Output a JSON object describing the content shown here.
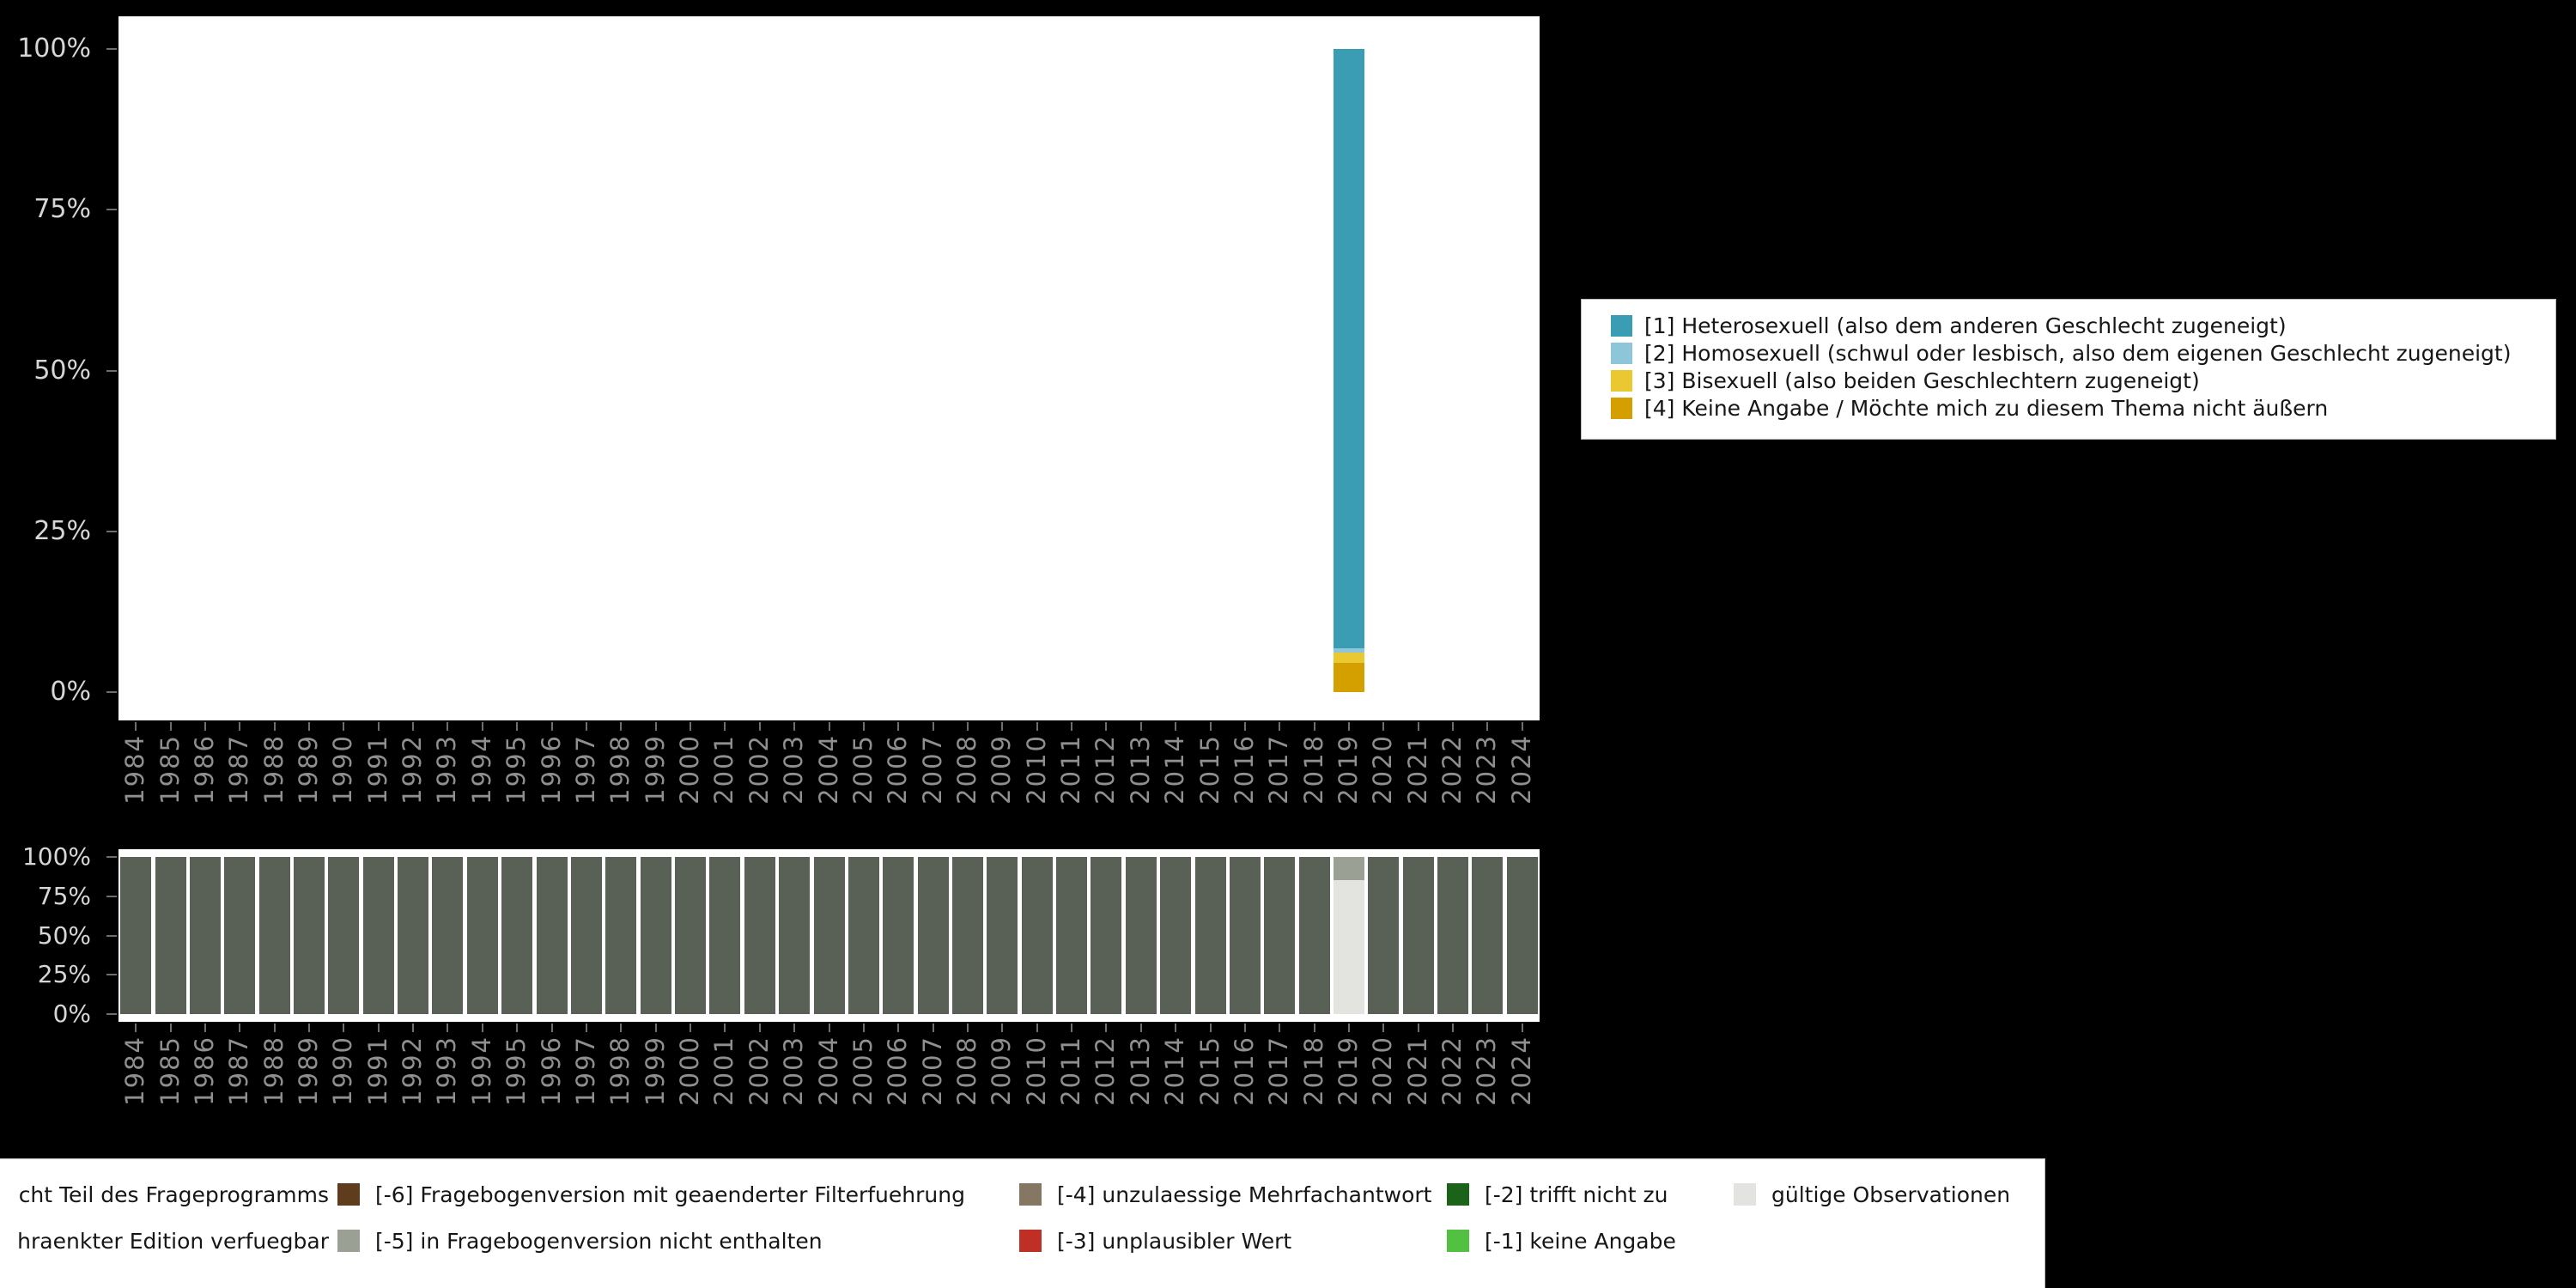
{
  "window": {
    "background": "#000000",
    "panel": "#ffffff"
  },
  "top_legend": {
    "items": [
      {
        "label": "[1] Heterosexuell (also dem anderen Geschlecht zugeneigt)",
        "color": "#3a9db3"
      },
      {
        "label": "[2] Homosexuell (schwul oder lesbisch, also dem eigenen Geschlecht zugeneigt)",
        "color": "#8cc6d8"
      },
      {
        "label": "[3] Bisexuell (also beiden Geschlechtern zugeneigt)",
        "color": "#e9c832"
      },
      {
        "label": "[4] Keine Angabe / Möchte mich zu diesem Thema nicht äußern",
        "color": "#d4a000"
      }
    ]
  },
  "bottom_legend": {
    "rows": [
      {
        "items": [
          {
            "label": "cht Teil des Frageprogramms",
            "color": null
          },
          {
            "label": "[-6] Fragebogenversion mit geaenderter Filterfuehrung",
            "color": "#5e3c1c"
          },
          {
            "label": "[-4] unzulaessige Mehrfachantwort",
            "color": "#857761"
          },
          {
            "label": "[-2] trifft nicht zu",
            "color": "#1a6318"
          },
          {
            "label": "gültige Observationen",
            "color": "#e3e3e0"
          }
        ]
      },
      {
        "items": [
          {
            "label": "hraenkter Edition verfuegbar",
            "color": null
          },
          {
            "label": "[-5] in Fragebogenversion nicht enthalten",
            "color": "#9aa094"
          },
          {
            "label": "[-3] unplausibler Wert",
            "color": "#bf2f25"
          },
          {
            "label": "[-1] keine Angabe",
            "color": "#52c141"
          }
        ]
      }
    ]
  },
  "chart_data": [
    {
      "type": "bar",
      "stacked": true,
      "title": "",
      "unit": "%",
      "ylim": [
        0,
        100
      ],
      "ytick_labels": [
        "100%",
        "75%",
        "50%",
        "25%",
        "0%"
      ],
      "categories": [
        "1984",
        "1985",
        "1986",
        "1987",
        "1988",
        "1989",
        "1990",
        "1991",
        "1992",
        "1993",
        "1994",
        "1995",
        "1996",
        "1997",
        "1998",
        "1999",
        "2000",
        "2001",
        "2002",
        "2003",
        "2004",
        "2005",
        "2006",
        "2007",
        "2008",
        "2009",
        "2010",
        "2011",
        "2012",
        "2013",
        "2014",
        "2015",
        "2016",
        "2017",
        "2018",
        "2019",
        "2020",
        "2021",
        "2022",
        "2023",
        "2024"
      ],
      "series": [
        {
          "name": "[1] Heterosexuell (also dem anderen Geschlecht zugeneigt)",
          "color": "#3a9db3",
          "default": 0,
          "values_by_year": {
            "2019": 93.2
          }
        },
        {
          "name": "[2] Homosexuell (schwul oder lesbisch, also dem eigenen Geschlecht zugeneigt)",
          "color": "#8cc6d8",
          "default": 0,
          "values_by_year": {
            "2019": 0.7
          }
        },
        {
          "name": "[3] Bisexuell (also beiden Geschlechtern zugeneigt)",
          "color": "#e9c832",
          "default": 0,
          "values_by_year": {
            "2019": 1.5
          }
        },
        {
          "name": "[4] Keine Angabe / Möchte mich zu diesem Thema nicht äußern",
          "color": "#d4a000",
          "default": 0,
          "values_by_year": {
            "2019": 4.6
          }
        }
      ]
    },
    {
      "type": "bar",
      "stacked": true,
      "title": "",
      "unit": "%",
      "ylim": [
        0,
        100
      ],
      "ytick_labels": [
        "100%",
        "75%",
        "50%",
        "25%",
        "0%"
      ],
      "categories": [
        "1984",
        "1985",
        "1986",
        "1987",
        "1988",
        "1989",
        "1990",
        "1991",
        "1992",
        "1993",
        "1994",
        "1995",
        "1996",
        "1997",
        "1998",
        "1999",
        "2000",
        "2001",
        "2002",
        "2003",
        "2004",
        "2005",
        "2006",
        "2007",
        "2008",
        "2009",
        "2010",
        "2011",
        "2012",
        "2013",
        "2014",
        "2015",
        "2016",
        "2017",
        "2018",
        "2019",
        "2020",
        "2021",
        "2022",
        "2023",
        "2024"
      ],
      "series": [
        {
          "name": "cht Teil des Frageprogramms",
          "color": "#596055",
          "default": 100,
          "values_by_year": {
            "2019": 0
          }
        },
        {
          "name": "[-5] in Fragebogenversion nicht enthalten",
          "color": "#9aa094",
          "default": 0,
          "values_by_year": {
            "2019": 15
          }
        },
        {
          "name": "gültige Observationen",
          "color": "#e3e3e0",
          "default": 0,
          "values_by_year": {
            "2019": 85
          }
        }
      ]
    }
  ]
}
